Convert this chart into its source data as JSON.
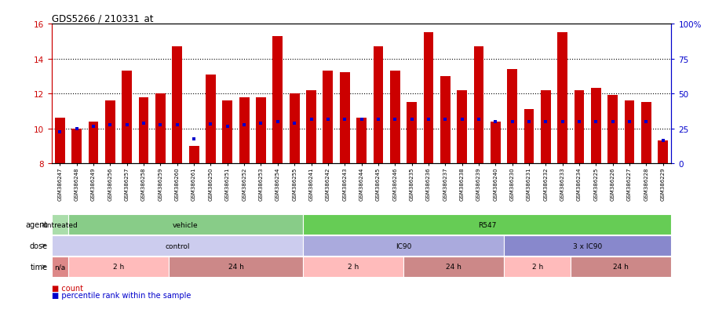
{
  "title": "GDS5266 / 210331_at",
  "samples": [
    "GSM386247",
    "GSM386248",
    "GSM386249",
    "GSM386256",
    "GSM386257",
    "GSM386258",
    "GSM386259",
    "GSM386260",
    "GSM386261",
    "GSM386250",
    "GSM386251",
    "GSM386252",
    "GSM386253",
    "GSM386254",
    "GSM386255",
    "GSM386241",
    "GSM386242",
    "GSM386243",
    "GSM386244",
    "GSM386245",
    "GSM386246",
    "GSM386235",
    "GSM386236",
    "GSM386237",
    "GSM386238",
    "GSM386239",
    "GSM386240",
    "GSM386230",
    "GSM386231",
    "GSM386232",
    "GSM386233",
    "GSM386234",
    "GSM386225",
    "GSM386226",
    "GSM386227",
    "GSM386228",
    "GSM386229"
  ],
  "bar_tops": [
    10.6,
    10.0,
    10.4,
    11.6,
    13.3,
    11.8,
    12.0,
    14.7,
    9.0,
    13.1,
    11.6,
    11.8,
    11.8,
    15.3,
    12.0,
    12.2,
    13.3,
    13.2,
    10.6,
    14.7,
    13.3,
    11.5,
    15.5,
    13.0,
    12.2,
    14.7,
    10.4,
    13.4,
    11.1,
    12.2,
    15.5,
    12.2,
    12.3,
    11.9,
    11.6,
    11.5,
    9.3
  ],
  "blue_dot_y": [
    9.8,
    10.0,
    10.1,
    10.2,
    10.2,
    10.3,
    10.2,
    10.2,
    9.4,
    10.25,
    10.1,
    10.2,
    10.3,
    10.4,
    10.3,
    10.5,
    10.5,
    10.5,
    10.5,
    10.5,
    10.5,
    10.5,
    10.5,
    10.5,
    10.5,
    10.5,
    10.4,
    10.4,
    10.4,
    10.4,
    10.4,
    10.4,
    10.4,
    10.4,
    10.4,
    10.4,
    9.3
  ],
  "ymin": 8,
  "ymax": 16,
  "bar_color": "#cc0000",
  "blue_dot_color": "#0000cc",
  "background_color": "#ffffff",
  "right_axis_ticks": [
    "0",
    "25",
    "50",
    "75",
    "100%"
  ],
  "right_axis_y": [
    8,
    10,
    12,
    14,
    16
  ],
  "right_axis_color": "#0000cc",
  "agent_segments": [
    {
      "text": "untreated",
      "start": 0,
      "end": 1,
      "color": "#aaddaa"
    },
    {
      "text": "vehicle",
      "start": 1,
      "end": 15,
      "color": "#88cc88"
    },
    {
      "text": "R547",
      "start": 15,
      "end": 37,
      "color": "#66cc55"
    }
  ],
  "dose_segments": [
    {
      "text": "control",
      "start": 0,
      "end": 15,
      "color": "#ccccee"
    },
    {
      "text": "IC90",
      "start": 15,
      "end": 27,
      "color": "#aaaadd"
    },
    {
      "text": "3 x IC90",
      "start": 27,
      "end": 37,
      "color": "#8888cc"
    }
  ],
  "time_segments": [
    {
      "text": "n/a",
      "start": 0,
      "end": 1,
      "color": "#dd8888"
    },
    {
      "text": "2 h",
      "start": 1,
      "end": 7,
      "color": "#ffbbbb"
    },
    {
      "text": "24 h",
      "start": 7,
      "end": 15,
      "color": "#cc8888"
    },
    {
      "text": "2 h",
      "start": 15,
      "end": 21,
      "color": "#ffbbbb"
    },
    {
      "text": "24 h",
      "start": 21,
      "end": 27,
      "color": "#cc8888"
    },
    {
      "text": "2 h",
      "start": 27,
      "end": 31,
      "color": "#ffbbbb"
    },
    {
      "text": "24 h",
      "start": 31,
      "end": 37,
      "color": "#cc8888"
    }
  ],
  "row_labels": [
    "agent",
    "dose",
    "time"
  ],
  "legend_items": [
    {
      "symbol": "■",
      "text": " count",
      "color": "#cc0000"
    },
    {
      "symbol": "■",
      "text": " percentile rank within the sample",
      "color": "#0000cc"
    }
  ]
}
